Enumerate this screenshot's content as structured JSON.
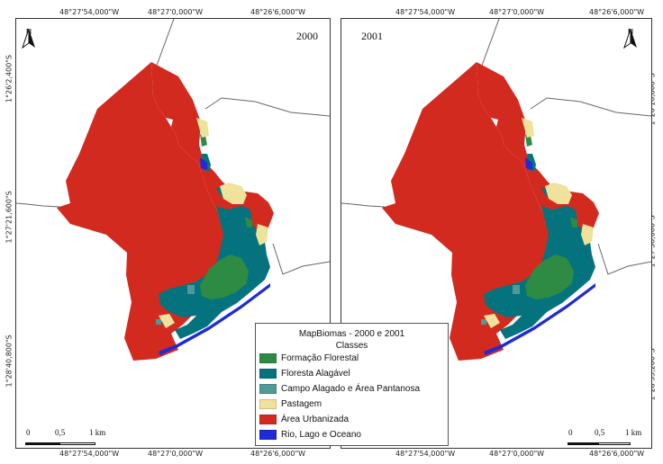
{
  "top_coords": [
    "48°27'54,000\"W",
    "48°27'0,000\"W",
    "48°26'6,000\"W",
    "48°27'54,000\"W",
    "48°27'0,000\"W",
    "48°26'6,000\"W"
  ],
  "bottom_coords": [
    "48°27'54,000\"W",
    "48°27'0,000\"W",
    "48°26'6,000\"W",
    "48°27'54,000\"W",
    "48°27'0,000\"W",
    "48°26'6,000\"W"
  ],
  "left_coords": [
    "1°26'2,400\"S",
    "1°27'21,600\"S",
    "1°28'40,800\"S"
  ],
  "right_coords": [
    "1°26'16,800\"S",
    "1°27'36,000\"S",
    "1°28'55,200\"S"
  ],
  "panels": [
    {
      "year": "2000",
      "north_label": "N"
    },
    {
      "year": "2001",
      "north_label": "N"
    }
  ],
  "scale": {
    "zero": "0",
    "half": "0,5",
    "one": "1 km"
  },
  "legend": {
    "title": "MapBiomas - 2000 e 2001",
    "subtitle": "Classes",
    "items": [
      {
        "label": "Formação Florestal",
        "color": "#2e8b43"
      },
      {
        "label": "Floresta Alagável",
        "color": "#05737d"
      },
      {
        "label": "Campo Alagado e Área Pantanosa",
        "color": "#4f9a98"
      },
      {
        "label": "Pastagem",
        "color": "#efe29a"
      },
      {
        "label": "Área Urbanizada",
        "color": "#d32a20"
      },
      {
        "label": "Rio, Lago e Oceano",
        "color": "#1f2ad8"
      }
    ]
  },
  "colors": {
    "frame": "#333333",
    "outline": "#666666"
  }
}
